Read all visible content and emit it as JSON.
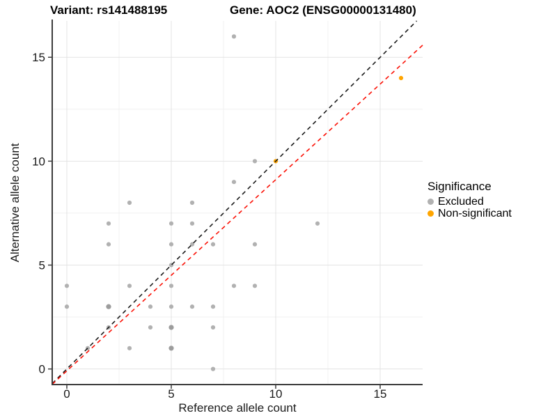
{
  "header": {
    "left_title": "Variant: rs141488195",
    "right_title": "Gene: AOC2 (ENSG00000131480)"
  },
  "chart_data": {
    "type": "scatter",
    "xlabel": "Reference allele count",
    "ylabel": "Alternative allele count",
    "xlim": [
      -0.7,
      17.033
    ],
    "ylim": [
      -0.75,
      16.75
    ],
    "x_major_ticks": [
      0,
      5,
      10,
      15
    ],
    "y_major_ticks": [
      0,
      5,
      10,
      15
    ],
    "x_minor_ticks": [
      2.5,
      7.5,
      12.5
    ],
    "y_minor_ticks": [
      2.5,
      7.5,
      12.5
    ],
    "grid": "major+minor",
    "legend_position": "right",
    "legend_title": "Significance",
    "series": [
      {
        "name": "Excluded",
        "color": "#b1b1b1",
        "overlap_color": "#9c9c9c",
        "points": [
          [
            8,
            16
          ],
          [
            9,
            10
          ],
          [
            8,
            9
          ],
          [
            3,
            8
          ],
          [
            6,
            8
          ],
          [
            2,
            7
          ],
          [
            5,
            7
          ],
          [
            6,
            7
          ],
          [
            12,
            7
          ],
          [
            2,
            6
          ],
          [
            5,
            6
          ],
          [
            6,
            6
          ],
          [
            7,
            6
          ],
          [
            9,
            6
          ],
          [
            5,
            5
          ],
          [
            0,
            4
          ],
          [
            3,
            4
          ],
          [
            5,
            4
          ],
          [
            8,
            4
          ],
          [
            9,
            4
          ],
          [
            0,
            3
          ],
          [
            2,
            3,
            2
          ],
          [
            4,
            3
          ],
          [
            5,
            3
          ],
          [
            6,
            3
          ],
          [
            7,
            3
          ],
          [
            4,
            2
          ],
          [
            5,
            2,
            2
          ],
          [
            7,
            2
          ],
          [
            2,
            2
          ],
          [
            1,
            1
          ],
          [
            3,
            1
          ],
          [
            5,
            1,
            2
          ],
          [
            7,
            0
          ]
        ]
      },
      {
        "name": "Non-significant",
        "color": "#FFA500",
        "overlap_color": "#F59000",
        "points": [
          [
            10,
            10
          ],
          [
            16,
            14
          ]
        ]
      }
    ],
    "ref_lines": [
      {
        "name": "identity",
        "slope": 1,
        "intercept": 0,
        "style": "dashed",
        "color": "#1a1a1a"
      },
      {
        "name": "trend",
        "slope": 0.92,
        "intercept": -0.09,
        "style": "dashed",
        "color": "#fb1005"
      }
    ]
  },
  "colors": {
    "background": "#ffffff",
    "grid_major": "#e3e3e3",
    "grid_minor": "#f0f0f0",
    "axis_line": "#3c3c3c",
    "text": "#1a1a1a"
  }
}
